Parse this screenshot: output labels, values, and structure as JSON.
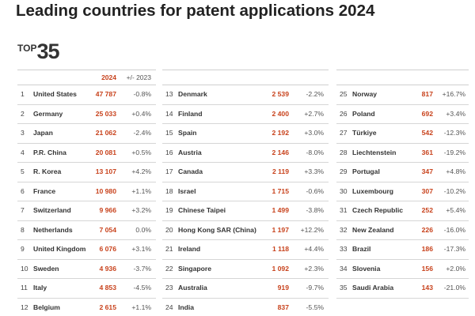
{
  "title": "Leading countries for patent applications 2024",
  "badge": {
    "top_word": "TOP",
    "top_number": "35"
  },
  "header": {
    "year_label": "2024",
    "change_label": "+/- 2023"
  },
  "columns": [
    [
      {
        "rank": "1",
        "country": "United States",
        "value": "47 787",
        "change": "-0.8%"
      },
      {
        "rank": "2",
        "country": "Germany",
        "value": "25 033",
        "change": "+0.4%"
      },
      {
        "rank": "3",
        "country": "Japan",
        "value": "21 062",
        "change": "-2.4%"
      },
      {
        "rank": "4",
        "country": "P.R. China",
        "value": "20 081",
        "change": "+0.5%"
      },
      {
        "rank": "5",
        "country": "R. Korea",
        "value": "13 107",
        "change": "+4.2%"
      },
      {
        "rank": "6",
        "country": "France",
        "value": "10 980",
        "change": "+1.1%"
      },
      {
        "rank": "7",
        "country": "Switzerland",
        "value": "9 966",
        "change": "+3.2%"
      },
      {
        "rank": "8",
        "country": "Netherlands",
        "value": "7 054",
        "change": "0.0%"
      },
      {
        "rank": "9",
        "country": "United Kingdom",
        "value": "6 076",
        "change": "+3.1%"
      },
      {
        "rank": "10",
        "country": "Sweden",
        "value": "4 936",
        "change": "-3.7%"
      },
      {
        "rank": "11",
        "country": "Italy",
        "value": "4 853",
        "change": "-4.5%"
      },
      {
        "rank": "12",
        "country": "Belgium",
        "value": "2 615",
        "change": "+1.1%"
      }
    ],
    [
      {
        "rank": "13",
        "country": "Denmark",
        "value": "2 539",
        "change": "-2.2%"
      },
      {
        "rank": "14",
        "country": "Finland",
        "value": "2 400",
        "change": "+2.7%"
      },
      {
        "rank": "15",
        "country": "Spain",
        "value": "2 192",
        "change": "+3.0%"
      },
      {
        "rank": "16",
        "country": "Austria",
        "value": "2 146",
        "change": "-8.0%"
      },
      {
        "rank": "17",
        "country": "Canada",
        "value": "2 119",
        "change": "+3.3%"
      },
      {
        "rank": "18",
        "country": "Israel",
        "value": "1 715",
        "change": "-0.6%"
      },
      {
        "rank": "19",
        "country": "Chinese Taipei",
        "value": "1 499",
        "change": "-3.8%"
      },
      {
        "rank": "20",
        "country": "Hong Kong SAR (China)",
        "value": "1 197",
        "change": "+12.2%"
      },
      {
        "rank": "21",
        "country": "Ireland",
        "value": "1 118",
        "change": "+4.4%"
      },
      {
        "rank": "22",
        "country": "Singapore",
        "value": "1 092",
        "change": "+2.3%"
      },
      {
        "rank": "23",
        "country": "Australia",
        "value": "919",
        "change": "-9.7%"
      },
      {
        "rank": "24",
        "country": "India",
        "value": "837",
        "change": "-5.5%"
      }
    ],
    [
      {
        "rank": "25",
        "country": "Norway",
        "value": "817",
        "change": "+16.7%"
      },
      {
        "rank": "26",
        "country": "Poland",
        "value": "692",
        "change": "+3.4%"
      },
      {
        "rank": "27",
        "country": "Türkiye",
        "value": "542",
        "change": "-12.3%"
      },
      {
        "rank": "28",
        "country": "Liechtenstein",
        "value": "361",
        "change": "-19.2%"
      },
      {
        "rank": "29",
        "country": "Portugal",
        "value": "347",
        "change": "+4.8%"
      },
      {
        "rank": "30",
        "country": "Luxembourg",
        "value": "307",
        "change": "-10.2%"
      },
      {
        "rank": "31",
        "country": "Czech Republic",
        "value": "252",
        "change": "+5.4%"
      },
      {
        "rank": "32",
        "country": "New Zealand",
        "value": "226",
        "change": "-16.0%"
      },
      {
        "rank": "33",
        "country": "Brazil",
        "value": "186",
        "change": "-17.3%"
      },
      {
        "rank": "34",
        "country": "Slovenia",
        "value": "156",
        "change": "+2.0%"
      },
      {
        "rank": "35",
        "country": "Saudi Arabia",
        "value": "143",
        "change": "-21.0%"
      }
    ]
  ],
  "colors": {
    "accent": "#c8421c",
    "text": "#333333",
    "rule": "#d6d6d6"
  }
}
